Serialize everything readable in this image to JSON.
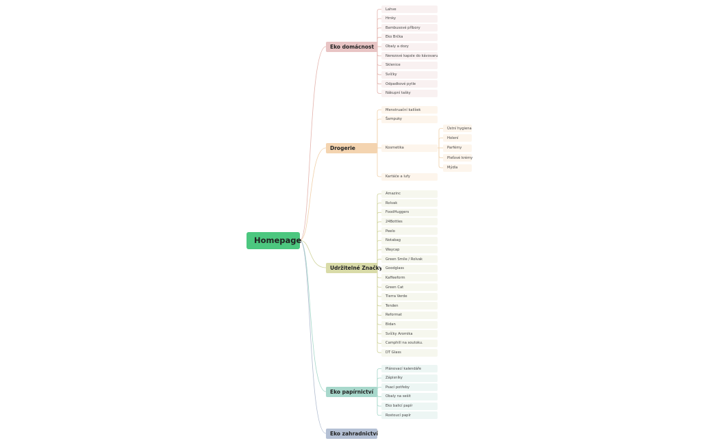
{
  "root": {
    "label": "Homepage",
    "color": "#4cc77f"
  },
  "branches": [
    {
      "label": "Eko domácnost",
      "color": "#e8c4c4",
      "leaf_color": "#f9f1f1",
      "line_color": "#e3b2ab",
      "children": [
        {
          "label": "Lahve"
        },
        {
          "label": "Hrnky"
        },
        {
          "label": "Bambusové příbory"
        },
        {
          "label": "Eko Brčka"
        },
        {
          "label": "Obaly a dozy"
        },
        {
          "label": "Nerezové kapsle do kávovaru"
        },
        {
          "label": "Sklenice"
        },
        {
          "label": "Svíčky"
        },
        {
          "label": "Odpadkové pytle"
        },
        {
          "label": "Nákupní tašky"
        }
      ]
    },
    {
      "label": "Drogerie",
      "color": "#f4d4b0",
      "leaf_color": "#fdf5ec",
      "line_color": "#f0cfa8",
      "children": [
        {
          "label": "Menstruační kalíšek"
        },
        {
          "label": "Šampuky"
        },
        {
          "label": "Kosmetika",
          "children": [
            {
              "label": "Ústní hygiena"
            },
            {
              "label": "Holení"
            },
            {
              "label": "Parfémy"
            },
            {
              "label": "Pleťové krémy"
            },
            {
              "label": "Mýdla"
            }
          ]
        },
        {
          "label": "Kartáče a lufy"
        }
      ]
    },
    {
      "label": "Udržitelné Značky",
      "color": "#d9dba8",
      "leaf_color": "#f6f7ee",
      "line_color": "#cfd29a",
      "children": [
        {
          "label": "Amazinc"
        },
        {
          "label": "Rolvak"
        },
        {
          "label": "FoodHuggers"
        },
        {
          "label": "24Bottles"
        },
        {
          "label": "Peelo"
        },
        {
          "label": "Notabag"
        },
        {
          "label": "Waycap"
        },
        {
          "label": "Green Smile / Rolvak"
        },
        {
          "label": "Goodglass"
        },
        {
          "label": "Kaffeeform"
        },
        {
          "label": "Green Cat"
        },
        {
          "label": "Tierra Verde"
        },
        {
          "label": "Tenden"
        },
        {
          "label": "Reformat"
        },
        {
          "label": "Bidan"
        },
        {
          "label": "Svíčky Aromika"
        },
        {
          "label": "Camphill na soutoku."
        },
        {
          "label": "DT Glass"
        }
      ]
    },
    {
      "label": "Eko papírnictví",
      "color": "#a8d8cc",
      "leaf_color": "#edf6f4",
      "line_color": "#a3d6c8",
      "children": [
        {
          "label": "Plánovací kalendáře"
        },
        {
          "label": "Zápisníky"
        },
        {
          "label": "Psací potřeby"
        },
        {
          "label": "Obaly na sešit"
        },
        {
          "label": "Eko balicí papír"
        },
        {
          "label": "Rostoucí papír"
        }
      ]
    },
    {
      "label": "Eko zahradnictví",
      "color": "#b4c0d4",
      "leaf_color": "#eef1f6",
      "line_color": "#b0bccf",
      "children": []
    }
  ]
}
